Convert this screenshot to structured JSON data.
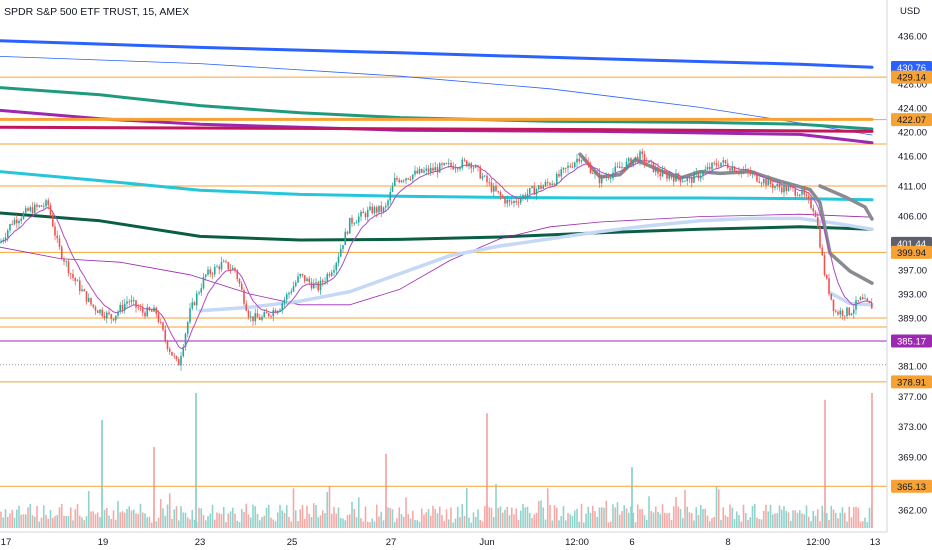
{
  "header": {
    "title": "SPDR S&P 500 ETF TRUST, 15, AMEX"
  },
  "colors": {
    "up": "#26a69a",
    "down": "#ef5350",
    "vol_up": "#8fd3cc",
    "vol_down": "#f5a9a7",
    "hline_orange": "#f7a234",
    "hline_purple": "#9c27b0",
    "axis_text": "#131722",
    "grid": "#e0e3eb"
  },
  "chart_data": {
    "type": "candlestick",
    "title": "SPDR S&P 500 ETF TRUST, 15, AMEX",
    "currency_label": "USD",
    "y_range": [
      358,
      438
    ],
    "x_tick_labels": [
      "17",
      "19",
      "23",
      "25",
      "27",
      "Jun",
      "12:00",
      "6",
      "8",
      "12:00",
      "13"
    ],
    "y_tick_labels": [
      "436.00",
      "428.00",
      "424.00",
      "420.00",
      "416.00",
      "411.00",
      "406.00",
      "397.00",
      "393.00",
      "389.00",
      "381.00",
      "377.00",
      "373.00",
      "369.00",
      "362.00"
    ],
    "price_path": [
      [
        0,
        401.5
      ],
      [
        12,
        405
      ],
      [
        30,
        407
      ],
      [
        48,
        408
      ],
      [
        58,
        401
      ],
      [
        72,
        396
      ],
      [
        92,
        391
      ],
      [
        112,
        389
      ],
      [
        128,
        392
      ],
      [
        142,
        390
      ],
      [
        156,
        390
      ],
      [
        166,
        385
      ],
      [
        178,
        381
      ],
      [
        190,
        390
      ],
      [
        205,
        396
      ],
      [
        222,
        398
      ],
      [
        235,
        397
      ],
      [
        250,
        389
      ],
      [
        262,
        389
      ],
      [
        280,
        391
      ],
      [
        300,
        396
      ],
      [
        318,
        394
      ],
      [
        335,
        398
      ],
      [
        350,
        405
      ],
      [
        372,
        407
      ],
      [
        385,
        407
      ],
      [
        395,
        412
      ],
      [
        415,
        413
      ],
      [
        440,
        414
      ],
      [
        470,
        415
      ],
      [
        495,
        410
      ],
      [
        510,
        408
      ],
      [
        530,
        410
      ],
      [
        555,
        412
      ],
      [
        580,
        416
      ],
      [
        600,
        412
      ],
      [
        620,
        414
      ],
      [
        640,
        416
      ],
      [
        660,
        413
      ],
      [
        690,
        412
      ],
      [
        720,
        415
      ],
      [
        750,
        413
      ],
      [
        775,
        411
      ],
      [
        800,
        410
      ],
      [
        815,
        407
      ],
      [
        825,
        396
      ],
      [
        835,
        390
      ],
      [
        850,
        390
      ],
      [
        860,
        392
      ],
      [
        870,
        391
      ]
    ],
    "moving_averages": [
      {
        "color": "#2962ff",
        "width": 3,
        "points": [
          [
            0,
            435.2
          ],
          [
            200,
            434.1
          ],
          [
            400,
            433.2
          ],
          [
            600,
            432.2
          ],
          [
            800,
            431.3
          ],
          [
            872,
            430.8
          ]
        ]
      },
      {
        "color": "#2962ff",
        "width": 0.8,
        "points": [
          [
            0,
            432.6
          ],
          [
            200,
            431.4
          ],
          [
            400,
            429.3
          ],
          [
            550,
            427.2
          ],
          [
            700,
            424.1
          ],
          [
            800,
            421.5
          ],
          [
            872,
            419.5
          ]
        ]
      },
      {
        "color": "#1f9a7e",
        "width": 3,
        "points": [
          [
            0,
            427.4
          ],
          [
            100,
            426.2
          ],
          [
            200,
            424.4
          ],
          [
            300,
            423.2
          ],
          [
            400,
            422.4
          ],
          [
            550,
            421.8
          ],
          [
            700,
            421.6
          ],
          [
            800,
            421.3
          ],
          [
            872,
            420.5
          ]
        ]
      },
      {
        "color": "#9c27b0",
        "width": 3,
        "points": [
          [
            0,
            423.6
          ],
          [
            100,
            422.2
          ],
          [
            200,
            421.3
          ],
          [
            400,
            420.3
          ],
          [
            600,
            420.1
          ],
          [
            800,
            419.6
          ],
          [
            872,
            418.2
          ]
        ]
      },
      {
        "color": "#c2185b",
        "width": 3,
        "points": [
          [
            0,
            420.8
          ],
          [
            300,
            420.6
          ],
          [
            600,
            420.4
          ],
          [
            872,
            420.1
          ]
        ]
      },
      {
        "color": "#f7a234",
        "width": 3,
        "points": [
          [
            0,
            422.1
          ],
          [
            872,
            422.1
          ]
        ]
      },
      {
        "color": "#26c6da",
        "width": 3,
        "points": [
          [
            0,
            413.4
          ],
          [
            100,
            411.9
          ],
          [
            200,
            410.3
          ],
          [
            300,
            409.6
          ],
          [
            400,
            409.3
          ],
          [
            500,
            409.1
          ],
          [
            600,
            409.0
          ],
          [
            700,
            409.0
          ],
          [
            800,
            408.9
          ],
          [
            872,
            408.7
          ]
        ]
      },
      {
        "color": "#0b5e45",
        "width": 3,
        "points": [
          [
            0,
            406.5
          ],
          [
            100,
            405.2
          ],
          [
            200,
            402.6
          ],
          [
            300,
            402.0
          ],
          [
            400,
            402.1
          ],
          [
            500,
            402.5
          ],
          [
            600,
            403.2
          ],
          [
            700,
            403.8
          ],
          [
            800,
            404.2
          ],
          [
            872,
            403.8
          ]
        ]
      },
      {
        "color": "#9c27b0",
        "width": 0.8,
        "points": [
          [
            0,
            400.8
          ],
          [
            60,
            398.9
          ],
          [
            120,
            398.3
          ],
          [
            190,
            396.2
          ],
          [
            250,
            393.0
          ],
          [
            300,
            391.2
          ],
          [
            350,
            391.2
          ],
          [
            400,
            393.8
          ],
          [
            450,
            398.6
          ],
          [
            500,
            402.2
          ],
          [
            550,
            404.2
          ],
          [
            600,
            405.0
          ],
          [
            700,
            405.9
          ],
          [
            800,
            406.3
          ],
          [
            872,
            405.8
          ]
        ]
      },
      {
        "color": "#c5d8f5",
        "width": 3.5,
        "points": [
          [
            200,
            390.2
          ],
          [
            250,
            390.8
          ],
          [
            300,
            391.8
          ],
          [
            350,
            393.4
          ],
          [
            400,
            396.4
          ],
          [
            450,
            399.4
          ],
          [
            500,
            401.0
          ],
          [
            550,
            402.2
          ],
          [
            600,
            403.4
          ],
          [
            650,
            404.4
          ],
          [
            700,
            405.2
          ],
          [
            750,
            405.6
          ],
          [
            800,
            405.6
          ],
          [
            835,
            404.8
          ],
          [
            872,
            403.8
          ]
        ]
      },
      {
        "color": "#8a8a92",
        "width": 3.5,
        "points": [
          [
            580,
            416.3
          ],
          [
            600,
            412.5
          ],
          [
            620,
            412.9
          ],
          [
            635,
            415.4
          ],
          [
            660,
            413.6
          ],
          [
            680,
            412.3
          ],
          [
            700,
            413.4
          ],
          [
            720,
            413.1
          ],
          [
            750,
            413.4
          ],
          [
            780,
            411.8
          ],
          [
            810,
            410.4
          ],
          [
            820,
            408.2
          ],
          [
            830,
            399.8
          ],
          [
            850,
            396.8
          ],
          [
            872,
            394.8
          ]
        ]
      },
      {
        "color": "#8a8a92",
        "width": 3.5,
        "points": [
          [
            820,
            411.0
          ],
          [
            845,
            409.2
          ],
          [
            865,
            407.5
          ],
          [
            872,
            405.5
          ]
        ]
      },
      {
        "color": "#c5d8f5",
        "width": 3.5,
        "points": [
          [
            830,
            393.2
          ],
          [
            850,
            391.4
          ],
          [
            872,
            391.2
          ]
        ]
      }
    ],
    "horizontal_lines": [
      {
        "price": 429.14,
        "color": "#f7a234",
        "label": "429.14"
      },
      {
        "price": 422.07,
        "color": "#f7a234",
        "label": "422.07"
      },
      {
        "price": 418.0,
        "color": "#f7a234",
        "label": ""
      },
      {
        "price": 411.0,
        "color": "#f7a234",
        "label": ""
      },
      {
        "price": 399.94,
        "color": "#f7a234",
        "label": "399.94"
      },
      {
        "price": 389.0,
        "color": "#f7a234",
        "label": ""
      },
      {
        "price": 387.5,
        "color": "#f7a234",
        "label": ""
      },
      {
        "price": 385.17,
        "color": "#9c27b0",
        "label": "385.17"
      },
      {
        "price": 378.91,
        "color": "#f7a234",
        "label": "378.91"
      },
      {
        "price": 365.13,
        "color": "#f7a234",
        "label": "365.13"
      }
    ],
    "price_badges": [
      {
        "label": "430.76",
        "price": 430.76,
        "bg": "#2962ff",
        "fg": "#ffffff"
      },
      {
        "label": "429.14",
        "price": 429.14,
        "bg": "#f7a234",
        "fg": "#131722"
      },
      {
        "label": "422.07",
        "price": 422.07,
        "bg": "#f7a234",
        "fg": "#131722"
      },
      {
        "label": "401.44",
        "price": 401.44,
        "bg": "#5d606b",
        "fg": "#ffffff"
      },
      {
        "label": "399.94",
        "price": 399.94,
        "bg": "#f7a234",
        "fg": "#131722"
      },
      {
        "label": "385.17",
        "price": 385.17,
        "bg": "#9c27b0",
        "fg": "#ffffff"
      },
      {
        "label": "378.91",
        "price": 378.91,
        "bg": "#f7a234",
        "fg": "#131722"
      },
      {
        "label": "365.13",
        "price": 365.13,
        "bg": "#f7a234",
        "fg": "#131722"
      }
    ],
    "volume_spikes": [
      {
        "x": 102,
        "level": 0.8,
        "up": true
      },
      {
        "x": 154,
        "level": 0.6,
        "up": false
      },
      {
        "x": 196,
        "level": 1.0,
        "up": true
      },
      {
        "x": 386,
        "level": 0.55,
        "up": false
      },
      {
        "x": 487,
        "level": 0.85,
        "up": false
      },
      {
        "x": 632,
        "level": 0.45,
        "up": true
      },
      {
        "x": 825,
        "level": 0.95,
        "up": false
      },
      {
        "x": 872,
        "level": 1.0,
        "up": false
      }
    ]
  }
}
